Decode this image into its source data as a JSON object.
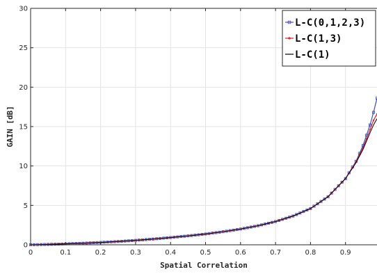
{
  "chart_data": {
    "type": "line",
    "title": "",
    "xlabel": "Spatial Correlation",
    "ylabel": "GAIN [dB]",
    "xlim": [
      0,
      0.99
    ],
    "ylim": [
      0,
      30
    ],
    "x_ticks": [
      "0",
      "0.1",
      "0.2",
      "0.3",
      "0.4",
      "0.5",
      "0.6",
      "0.7",
      "0.8",
      "0.9"
    ],
    "y_ticks": [
      "0",
      "5",
      "10",
      "15",
      "20",
      "25",
      "30"
    ],
    "grid": true,
    "legend_position": "top-right",
    "x": [
      0,
      0.05,
      0.1,
      0.15,
      0.2,
      0.25,
      0.3,
      0.35,
      0.4,
      0.45,
      0.5,
      0.55,
      0.6,
      0.65,
      0.7,
      0.75,
      0.8,
      0.85,
      0.9,
      0.93,
      0.95,
      0.97,
      0.98,
      0.99
    ],
    "series": [
      {
        "name": "L-C(0,1,2,3)",
        "color": "#3b4cc0",
        "marker": "square",
        "values": [
          0,
          0.05,
          0.12,
          0.2,
          0.3,
          0.42,
          0.56,
          0.73,
          0.92,
          1.13,
          1.37,
          1.66,
          2.0,
          2.42,
          2.95,
          3.65,
          4.6,
          6.1,
          8.4,
          10.6,
          12.6,
          15.2,
          16.8,
          18.6
        ]
      },
      {
        "name": "L-C(1,3)",
        "color": "#e41a1c",
        "marker": "dot",
        "values": [
          0,
          0.05,
          0.12,
          0.2,
          0.3,
          0.42,
          0.56,
          0.73,
          0.92,
          1.13,
          1.37,
          1.66,
          2.0,
          2.42,
          2.95,
          3.65,
          4.6,
          6.1,
          8.4,
          10.5,
          12.3,
          14.6,
          15.8,
          16.6
        ]
      },
      {
        "name": "L-C(1)",
        "color": "#000000",
        "marker": "none",
        "values": [
          0,
          0.05,
          0.12,
          0.2,
          0.3,
          0.42,
          0.56,
          0.73,
          0.92,
          1.13,
          1.37,
          1.66,
          2.0,
          2.42,
          2.95,
          3.65,
          4.6,
          6.1,
          8.4,
          10.4,
          12.1,
          14.2,
          15.2,
          16.0
        ]
      }
    ]
  }
}
